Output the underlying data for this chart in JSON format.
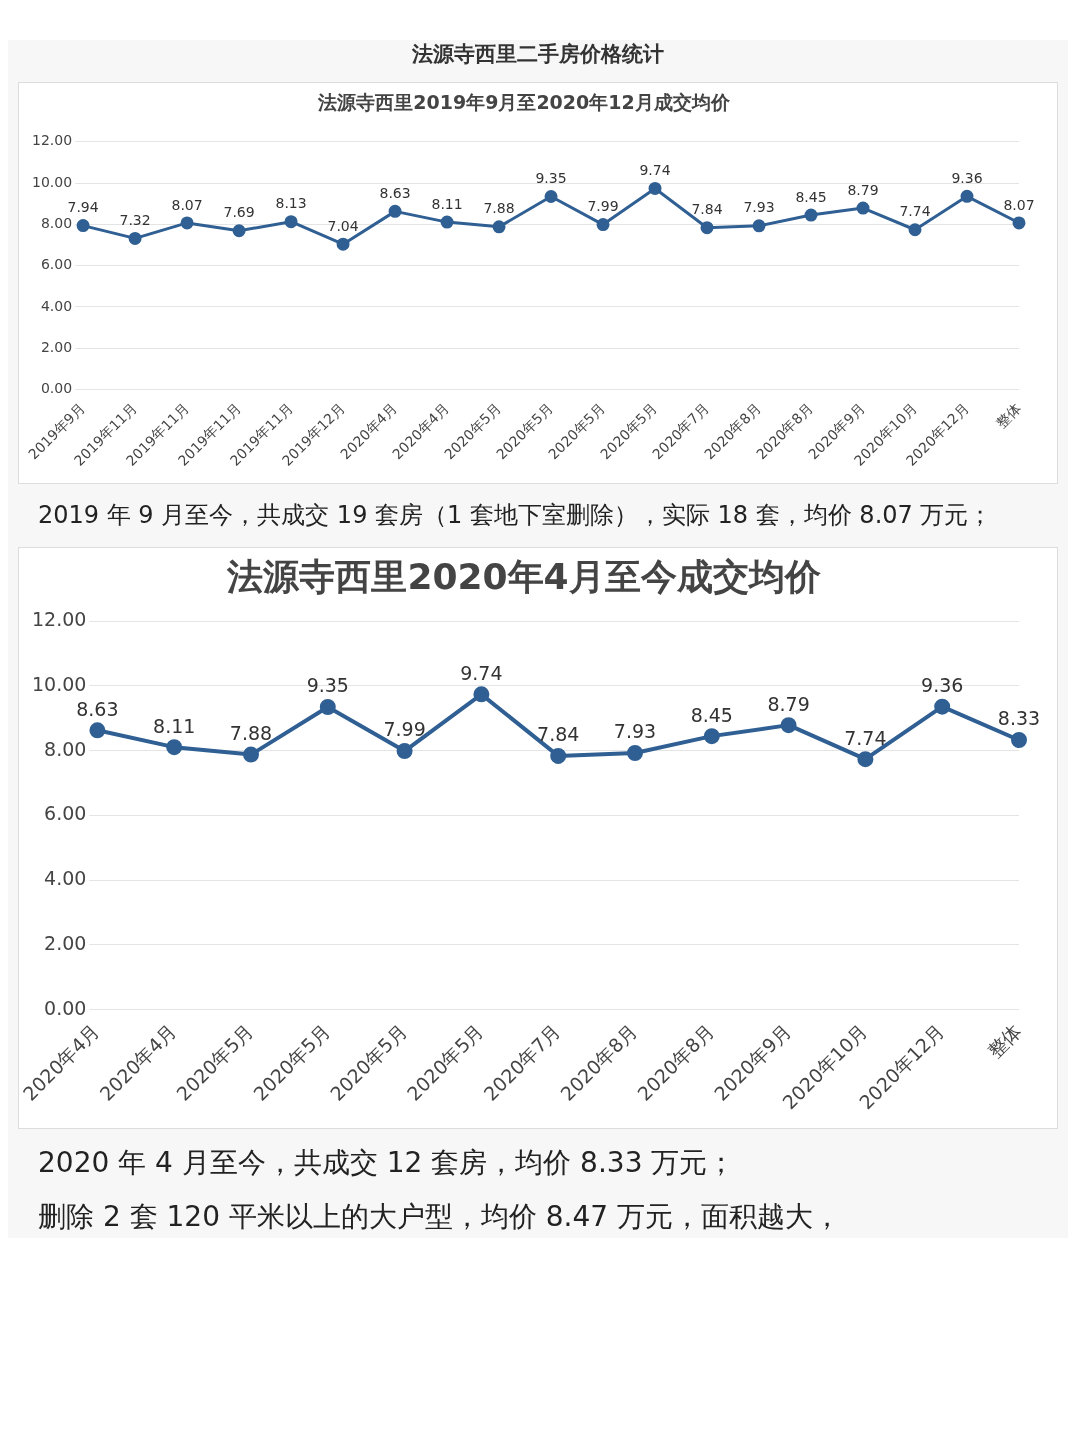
{
  "chart_data": [
    {
      "type": "line",
      "title": "法源寺西里二手房价格统计",
      "subtitle": "法源寺西里2019年9月至2020年12月成交均价",
      "categories": [
        "2019年9月",
        "2019年11月",
        "2019年11月",
        "2019年11月",
        "2019年11月",
        "2019年12月",
        "2020年4月",
        "2020年4月",
        "2020年5月",
        "2020年5月",
        "2020年5月",
        "2020年5月",
        "2020年7月",
        "2020年8月",
        "2020年8月",
        "2020年9月",
        "2020年10月",
        "2020年12月",
        "整体"
      ],
      "series": [
        {
          "color": "#2f5f93",
          "values": [
            7.94,
            7.32,
            8.07,
            7.69,
            8.13,
            7.04,
            8.63,
            8.11,
            7.88,
            9.35,
            7.99,
            9.74,
            7.84,
            7.93,
            8.45,
            8.79,
            7.74,
            9.36,
            8.07
          ]
        }
      ],
      "ylim": [
        0,
        12
      ],
      "yticks": [
        {
          "value": 0,
          "label": "0.00"
        },
        {
          "value": 2,
          "label": "2.00"
        },
        {
          "value": 4,
          "label": "4.00"
        },
        {
          "value": 6,
          "label": "6.00"
        },
        {
          "value": 8,
          "label": "8.00"
        },
        {
          "value": 10,
          "label": "10.00"
        },
        {
          "value": 12,
          "label": "12.00"
        }
      ],
      "grid": "y",
      "marker": "circle",
      "data_labels": true,
      "legend": false,
      "annotations": [
        "2019 年 9 月至今，共成交 19 套房（1 套地下室删除），实际 18 套，均价 8.07 万元；"
      ]
    },
    {
      "type": "line",
      "title": "法源寺西里2020年4月至今成交均价",
      "categories": [
        "2020年4月",
        "2020年4月",
        "2020年5月",
        "2020年5月",
        "2020年5月",
        "2020年5月",
        "2020年7月",
        "2020年8月",
        "2020年8月",
        "2020年9月",
        "2020年10月",
        "2020年12月",
        "整体"
      ],
      "series": [
        {
          "color": "#2f5f93",
          "values": [
            8.63,
            8.11,
            7.88,
            9.35,
            7.99,
            9.74,
            7.84,
            7.93,
            8.45,
            8.79,
            7.74,
            9.36,
            8.33
          ]
        }
      ],
      "ylim": [
        0,
        12
      ],
      "yticks": [
        {
          "value": 0,
          "label": "0.00"
        },
        {
          "value": 2,
          "label": "2.00"
        },
        {
          "value": 4,
          "label": "4.00"
        },
        {
          "value": 6,
          "label": "6.00"
        },
        {
          "value": 8,
          "label": "8.00"
        },
        {
          "value": 10,
          "label": "10.00"
        },
        {
          "value": 12,
          "label": "12.00"
        }
      ],
      "grid": "y",
      "marker": "circle",
      "data_labels": true,
      "legend": false,
      "annotations": [
        "2020 年 4 月至今，共成交 12 套房，均价 8.33 万元；",
        "删除 2 套 120 平米以上的大户型，均价 8.47 万元，面积越大，"
      ]
    }
  ]
}
